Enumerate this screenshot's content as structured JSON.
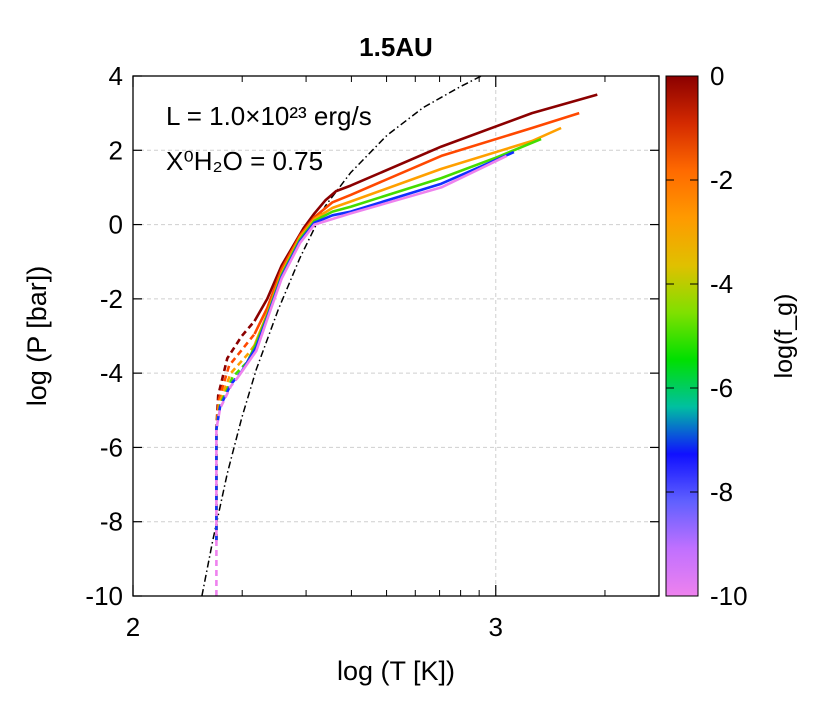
{
  "chart_data": {
    "type": "line",
    "title": "1.5AU",
    "xlabel": "log (T [K])",
    "ylabel": "log (P [bar])",
    "xlim": [
      2.0,
      3.45
    ],
    "ylim": [
      -10,
      4
    ],
    "x_major_ticks": [
      2,
      3
    ],
    "x_tick_labels": [
      "2",
      "3"
    ],
    "y_ticks": [
      4,
      2,
      0,
      -2,
      -4,
      -6,
      -8,
      -10
    ],
    "y_tick_labels": [
      "4",
      "2",
      "0",
      "-2",
      "-4",
      "-6",
      "-8",
      "-10"
    ],
    "grid": true,
    "annotation_luminosity": "L = 1.0×10²³ erg/s",
    "annotation_water": "X⁰H₂O = 0.75",
    "colorbar": {
      "label": "log(f_g)",
      "range": [
        -10,
        0
      ],
      "ticks": [
        0,
        -2,
        -4,
        -6,
        -8,
        -10
      ],
      "tick_labels": [
        "0",
        "-2",
        "-4",
        "-6",
        "-8",
        "-10"
      ],
      "colors": [
        "#8b0000",
        "#d42a00",
        "#ff6a00",
        "#ff9a00",
        "#e0c000",
        "#80e000",
        "#00e000",
        "#00c0a0",
        "#1010ff",
        "#6060ff",
        "#c070ff",
        "#ee82ee"
      ]
    },
    "series": [
      {
        "fg_log": 0,
        "color": "#8b0000",
        "dashed": [
          [
            2.23,
            -8.5
          ],
          [
            2.23,
            -5.5
          ],
          [
            2.235,
            -4.6
          ],
          [
            2.26,
            -3.6
          ],
          [
            2.3,
            -3.0
          ],
          [
            2.335,
            -2.6
          ]
        ],
        "solid": [
          [
            2.335,
            -2.6
          ],
          [
            2.37,
            -2.0
          ],
          [
            2.41,
            -1.1
          ],
          [
            2.47,
            -0.1
          ],
          [
            2.5,
            0.3
          ],
          [
            2.53,
            0.65
          ],
          [
            2.56,
            0.9
          ],
          [
            2.6,
            1.05
          ],
          [
            2.85,
            2.1
          ],
          [
            3.1,
            3.0
          ],
          [
            3.28,
            3.5
          ]
        ]
      },
      {
        "fg_log": -1,
        "color": "#ff4800",
        "dashed": [
          [
            2.23,
            -8.5
          ],
          [
            2.23,
            -5.5
          ],
          [
            2.237,
            -4.7
          ],
          [
            2.265,
            -3.8
          ],
          [
            2.31,
            -3.25
          ],
          [
            2.335,
            -2.95
          ]
        ],
        "solid": [
          [
            2.335,
            -2.95
          ],
          [
            2.37,
            -2.25
          ],
          [
            2.41,
            -1.2
          ],
          [
            2.46,
            -0.3
          ],
          [
            2.5,
            0.2
          ],
          [
            2.55,
            0.6
          ],
          [
            2.6,
            0.8
          ],
          [
            2.85,
            1.85
          ],
          [
            3.1,
            2.6
          ],
          [
            3.23,
            3.0
          ]
        ]
      },
      {
        "fg_log": -3,
        "color": "#ffa000",
        "dashed": [
          [
            2.23,
            -8.5
          ],
          [
            2.23,
            -5.5
          ],
          [
            2.238,
            -4.8
          ],
          [
            2.27,
            -4.0
          ],
          [
            2.32,
            -3.45
          ],
          [
            2.335,
            -3.25
          ]
        ],
        "solid": [
          [
            2.335,
            -3.25
          ],
          [
            2.37,
            -2.4
          ],
          [
            2.41,
            -1.3
          ],
          [
            2.46,
            -0.35
          ],
          [
            2.5,
            0.15
          ],
          [
            2.55,
            0.45
          ],
          [
            2.6,
            0.62
          ],
          [
            2.85,
            1.5
          ],
          [
            3.1,
            2.25
          ],
          [
            3.18,
            2.6
          ]
        ]
      },
      {
        "fg_log": -5,
        "color": "#44dd00",
        "dashed": [
          [
            2.23,
            -8.5
          ],
          [
            2.23,
            -5.5
          ],
          [
            2.24,
            -4.85
          ],
          [
            2.275,
            -4.1
          ],
          [
            2.315,
            -3.7
          ]
        ],
        "solid": [
          [
            2.315,
            -3.7
          ],
          [
            2.34,
            -3.2
          ],
          [
            2.37,
            -2.45
          ],
          [
            2.41,
            -1.35
          ],
          [
            2.46,
            -0.4
          ],
          [
            2.5,
            0.1
          ],
          [
            2.55,
            0.35
          ],
          [
            2.6,
            0.48
          ],
          [
            2.85,
            1.25
          ],
          [
            3.0,
            1.8
          ],
          [
            3.125,
            2.3
          ]
        ]
      },
      {
        "fg_log": -7,
        "color": "#1030ff",
        "dashed": [
          [
            2.23,
            -8.5
          ],
          [
            2.23,
            -5.5
          ],
          [
            2.24,
            -4.9
          ],
          [
            2.27,
            -4.3
          ],
          [
            2.3,
            -3.95
          ]
        ],
        "solid": [
          [
            2.3,
            -3.95
          ],
          [
            2.34,
            -3.3
          ],
          [
            2.37,
            -2.5
          ],
          [
            2.41,
            -1.4
          ],
          [
            2.46,
            -0.45
          ],
          [
            2.5,
            0.05
          ],
          [
            2.55,
            0.25
          ],
          [
            2.6,
            0.35
          ],
          [
            2.85,
            1.1
          ],
          [
            3.05,
            1.95
          ]
        ]
      },
      {
        "fg_log": -10,
        "color": "#ee82ee",
        "dashed": [
          [
            2.23,
            -10.0
          ],
          [
            2.23,
            -5.5
          ],
          [
            2.24,
            -4.95
          ],
          [
            2.27,
            -4.35
          ],
          [
            2.29,
            -4.1
          ]
        ],
        "solid": [
          [
            2.29,
            -4.1
          ],
          [
            2.34,
            -3.4
          ],
          [
            2.37,
            -2.55
          ],
          [
            2.41,
            -1.45
          ],
          [
            2.46,
            -0.5
          ],
          [
            2.5,
            0.0
          ],
          [
            2.55,
            0.15
          ],
          [
            2.6,
            0.3
          ],
          [
            2.85,
            1.0
          ],
          [
            3.03,
            1.85
          ]
        ]
      }
    ],
    "boundary_curve": {
      "style": "dash-dot",
      "color": "#000000",
      "points": [
        [
          2.19,
          -10.0
        ],
        [
          2.22,
          -8.5
        ],
        [
          2.26,
          -6.7
        ],
        [
          2.3,
          -5.2
        ],
        [
          2.34,
          -3.9
        ],
        [
          2.4,
          -2.3
        ],
        [
          2.46,
          -0.9
        ],
        [
          2.53,
          0.5
        ],
        [
          2.6,
          1.4
        ],
        [
          2.7,
          2.4
        ],
        [
          2.8,
          3.15
        ],
        [
          2.9,
          3.7
        ],
        [
          2.96,
          4.0
        ]
      ]
    }
  }
}
